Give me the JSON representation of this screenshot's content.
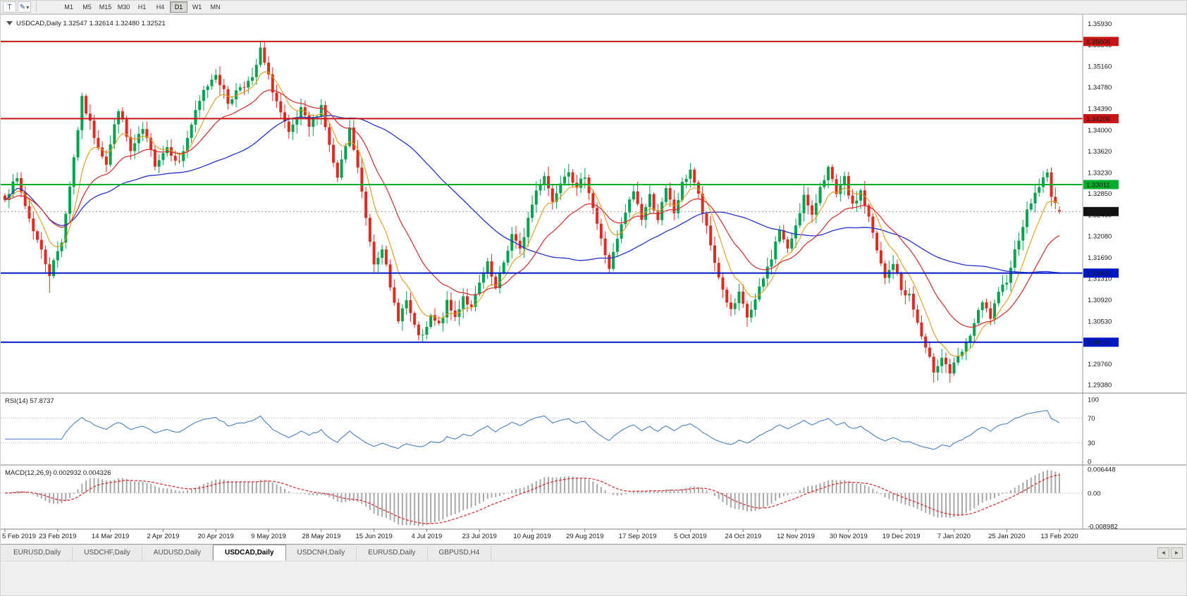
{
  "toolbar": {
    "icon_buttons": [
      {
        "name": "chart-type-icon",
        "glyph": "T"
      },
      {
        "name": "drawing-tools-icon",
        "glyph": "✎",
        "caret": "▾"
      }
    ],
    "timeframes": [
      {
        "label": "M1",
        "active": false
      },
      {
        "label": "M5",
        "active": false
      },
      {
        "label": "M15",
        "active": false
      },
      {
        "label": "M30",
        "active": false
      },
      {
        "label": "H1",
        "active": false
      },
      {
        "label": "H4",
        "active": false
      },
      {
        "label": "D1",
        "active": true
      },
      {
        "label": "W1",
        "active": false
      },
      {
        "label": "MN",
        "active": false
      }
    ]
  },
  "window": {
    "title_symbol": "USDCAD,Daily",
    "ohlc": {
      "open": "1.32547",
      "high": "1.32614",
      "low": "1.32480",
      "close": "1.32521"
    }
  },
  "price_axis": {
    "labels": [
      "1.35930",
      "1.35545",
      "1.35160",
      "1.34780",
      "1.34390",
      "1.34000",
      "1.33620",
      "1.33230",
      "1.32850",
      "1.32460",
      "1.32080",
      "1.31690",
      "1.31310",
      "1.30920",
      "1.30530",
      "1.30150",
      "1.29760",
      "1.29380"
    ]
  },
  "objects": {
    "hlines": [
      {
        "label": "1.35606",
        "price": 1.35606,
        "color": "#C81414",
        "role": "resistance"
      },
      {
        "label": "1.34206",
        "price": 1.34206,
        "color": "#C81414",
        "role": "resistance"
      },
      {
        "label": "1.33011",
        "price": 1.33011,
        "color": "#00AE2C",
        "role": "pivot"
      },
      {
        "label": "1.31405",
        "price": 1.31405,
        "color": "#0018C8",
        "role": "support"
      },
      {
        "label": "1.30152",
        "price": 1.30152,
        "color": "#0018C8",
        "role": "support"
      }
    ],
    "current_price": {
      "value": 1.32521,
      "label": "1.32521"
    }
  },
  "indicators": {
    "rsi": {
      "name": "RSI(14)",
      "value": "57.8737",
      "scale": [
        "100",
        "70",
        "30",
        "0"
      ],
      "levels": [
        70,
        30
      ],
      "color": "#4A7FBF"
    },
    "macd": {
      "name": "MACD(12,26,9)",
      "value_main": "0.002932",
      "value_signal": "0.004326",
      "scale": [
        "0.006448",
        "0.00",
        "-0.008982"
      ],
      "ylim": [
        -0.008982,
        0.006448
      ]
    }
  },
  "date_axis": {
    "bars_per_label": 13,
    "labels": [
      "5 Feb 2019",
      "23 Feb 2019",
      "14 Mar 2019",
      "2 Apr 2019",
      "20 Apr 2019",
      "9 May 2019",
      "28 May 2019",
      "15 Jun 2019",
      "4 Jul 2019",
      "23 Jul 2019",
      "10 Aug 2019",
      "29 Aug 2019",
      "17 Sep 2019",
      "5 Oct 2019",
      "24 Oct 2019",
      "12 Nov 2019",
      "30 Nov 2019",
      "19 Dec 2019",
      "7 Jan 2020",
      "25 Jan 2020",
      "13 Feb 2020"
    ]
  },
  "tabs": {
    "items": [
      "EURUSD,Daily",
      "USDCHF,Daily",
      "AUDUSD,Daily",
      "USDCAD,Daily",
      "USDCNH,Daily",
      "EURUSD,Daily",
      "GBPUSD,H4"
    ],
    "active_index": 3,
    "scroll_left_glyph": "◄",
    "scroll_right_glyph": "►"
  },
  "chart_data": {
    "type": "candlestick",
    "symbol": "USDCAD",
    "timeframe": "Daily",
    "title": "USDCAD,Daily 1.32547 1.32614 1.32480 1.32521",
    "x_start_date": "5 Feb 2019",
    "x_end_date": "13 Feb 2020",
    "bar_count": 261,
    "seed": 7,
    "price_range": {
      "top": 1.36,
      "bottom": 1.2928
    },
    "last_candle": [
      1.32547,
      1.32614,
      1.3248,
      1.32521
    ],
    "close_anchors": [
      [
        0,
        1.328
      ],
      [
        3,
        1.331
      ],
      [
        6,
        1.324
      ],
      [
        9,
        1.318
      ],
      [
        11,
        1.314
      ],
      [
        14,
        1.32
      ],
      [
        17,
        1.335
      ],
      [
        19,
        1.3455
      ],
      [
        22,
        1.339
      ],
      [
        25,
        1.334
      ],
      [
        28,
        1.344
      ],
      [
        31,
        1.336
      ],
      [
        34,
        1.34
      ],
      [
        37,
        1.334
      ],
      [
        40,
        1.337
      ],
      [
        43,
        1.334
      ],
      [
        46,
        1.341
      ],
      [
        49,
        1.347
      ],
      [
        52,
        1.3505
      ],
      [
        55,
        1.345
      ],
      [
        58,
        1.348
      ],
      [
        61,
        1.349
      ],
      [
        63,
        1.3545
      ],
      [
        65,
        1.3495
      ],
      [
        68,
        1.343
      ],
      [
        70,
        1.339
      ],
      [
        73,
        1.3435
      ],
      [
        75,
        1.3405
      ],
      [
        78,
        1.3445
      ],
      [
        80,
        1.337
      ],
      [
        82,
        1.331
      ],
      [
        85,
        1.34
      ],
      [
        87,
        1.333
      ],
      [
        89,
        1.324
      ],
      [
        91,
        1.316
      ],
      [
        93,
        1.319
      ],
      [
        95,
        1.311
      ],
      [
        97,
        1.306
      ],
      [
        99,
        1.309
      ],
      [
        101,
        1.304
      ],
      [
        103,
        1.3022
      ],
      [
        105,
        1.306
      ],
      [
        107,
        1.3045
      ],
      [
        109,
        1.3085
      ],
      [
        111,
        1.306
      ],
      [
        113,
        1.31
      ],
      [
        115,
        1.3075
      ],
      [
        117,
        1.312
      ],
      [
        119,
        1.3155
      ],
      [
        121,
        1.311
      ],
      [
        123,
        1.316
      ],
      [
        125,
        1.321
      ],
      [
        127,
        1.318
      ],
      [
        129,
        1.324
      ],
      [
        131,
        1.329
      ],
      [
        133,
        1.332
      ],
      [
        135,
        1.327
      ],
      [
        137,
        1.331
      ],
      [
        139,
        1.333
      ],
      [
        141,
        1.329
      ],
      [
        143,
        1.332
      ],
      [
        145,
        1.326
      ],
      [
        147,
        1.32
      ],
      [
        149,
        1.315
      ],
      [
        151,
        1.32
      ],
      [
        153,
        1.325
      ],
      [
        155,
        1.329
      ],
      [
        157,
        1.324
      ],
      [
        159,
        1.328
      ],
      [
        161,
        1.324
      ],
      [
        163,
        1.329
      ],
      [
        165,
        1.325
      ],
      [
        167,
        1.33
      ],
      [
        169,
        1.333
      ],
      [
        171,
        1.328
      ],
      [
        173,
        1.322
      ],
      [
        175,
        1.316
      ],
      [
        177,
        1.311
      ],
      [
        179,
        1.307
      ],
      [
        181,
        1.31
      ],
      [
        183,
        1.306
      ],
      [
        185,
        1.309
      ],
      [
        187,
        1.313
      ],
      [
        189,
        1.317
      ],
      [
        191,
        1.322
      ],
      [
        193,
        1.318
      ],
      [
        195,
        1.323
      ],
      [
        197,
        1.328
      ],
      [
        199,
        1.324
      ],
      [
        201,
        1.33
      ],
      [
        203,
        1.333
      ],
      [
        205,
        1.328
      ],
      [
        207,
        1.331
      ],
      [
        209,
        1.326
      ],
      [
        211,
        1.329
      ],
      [
        213,
        1.324
      ],
      [
        215,
        1.318
      ],
      [
        217,
        1.313
      ],
      [
        219,
        1.316
      ],
      [
        221,
        1.311
      ],
      [
        223,
        1.31
      ],
      [
        225,
        1.305
      ],
      [
        227,
        1.3
      ],
      [
        229,
        1.2965
      ],
      [
        231,
        1.299
      ],
      [
        233,
        1.296
      ],
      [
        235,
        1.2985
      ],
      [
        237,
        1.301
      ],
      [
        239,
        1.305
      ],
      [
        241,
        1.3085
      ],
      [
        243,
        1.306
      ],
      [
        245,
        1.31
      ],
      [
        247,
        1.313
      ],
      [
        249,
        1.318
      ],
      [
        251,
        1.323
      ],
      [
        253,
        1.327
      ],
      [
        255,
        1.33
      ],
      [
        257,
        1.332
      ],
      [
        258,
        1.3285
      ],
      [
        260,
        1.3252
      ]
    ],
    "wick_overrides": [
      [
        11,
        "l",
        1.3105
      ],
      [
        63,
        "h",
        1.356
      ],
      [
        103,
        "l",
        1.3016
      ],
      [
        233,
        "l",
        1.2942
      ],
      [
        257,
        "h",
        1.3329
      ]
    ],
    "moving_averages": [
      {
        "name": "fast",
        "type": "ema",
        "period": 8,
        "color": "#E39B17"
      },
      {
        "name": "mid",
        "type": "ema",
        "period": 21,
        "color": "#D42A2A"
      },
      {
        "name": "slow",
        "type": "sma",
        "period": 55,
        "color": "#2433CF"
      }
    ],
    "colors": {
      "up": "#00A24E",
      "down": "#E02A20",
      "macd_hist": "#A8A8A8",
      "macd_signal": "#D42A2A",
      "rsi": "#4A7FBF",
      "bid_line": "#999999"
    }
  }
}
